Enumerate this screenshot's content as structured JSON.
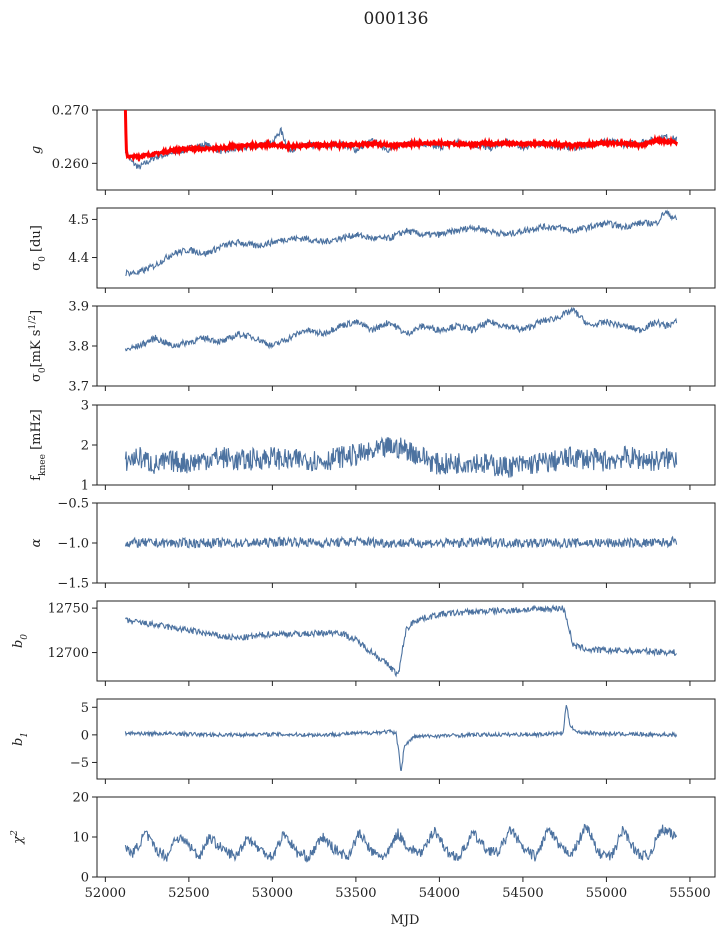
{
  "title": "000136",
  "chart_data": {
    "type": "line",
    "title": "000136",
    "xlabel": "MJD",
    "xlim": [
      51950,
      55650
    ],
    "xticks": [
      52000,
      52500,
      53000,
      53500,
      54000,
      54500,
      55000,
      55500
    ],
    "xtick_labels": [
      "52000",
      "52500",
      "53000",
      "53500",
      "54000",
      "54500",
      "55000",
      "55500"
    ],
    "series_color": "#4c72a0",
    "fit_color": "#ff0000",
    "grid": false,
    "panels": [
      {
        "name": "g",
        "ylabel": "g",
        "ylim": [
          0.255,
          0.27
        ],
        "yticks": [
          0.26,
          0.27
        ],
        "ytick_labels": [
          "0.260",
          "0.270"
        ],
        "x": [
          52120,
          52150,
          52200,
          52300,
          52400,
          52500,
          52600,
          52700,
          52800,
          52900,
          53000,
          53050,
          53100,
          53200,
          53300,
          53400,
          53500,
          53600,
          53700,
          53800,
          53900,
          54000,
          54100,
          54200,
          54300,
          54400,
          54500,
          54600,
          54700,
          54800,
          54900,
          55000,
          55100,
          55200,
          55300,
          55350,
          55420
        ],
        "y": [
          0.2625,
          0.2605,
          0.2592,
          0.2612,
          0.2618,
          0.2628,
          0.2635,
          0.2622,
          0.2628,
          0.2632,
          0.2638,
          0.2662,
          0.2625,
          0.2635,
          0.263,
          0.2638,
          0.2625,
          0.2642,
          0.2625,
          0.264,
          0.2635,
          0.263,
          0.264,
          0.2635,
          0.2628,
          0.264,
          0.263,
          0.2638,
          0.2632,
          0.2628,
          0.2635,
          0.2642,
          0.2635,
          0.264,
          0.2645,
          0.265,
          0.2645
        ],
        "fit": {
          "x": [
            52120,
            52125,
            52130,
            52150,
            52200,
            52300,
            52400,
            52500,
            52600,
            52700,
            52800,
            52900,
            53000,
            53100,
            53200,
            53300,
            53400,
            53500,
            53600,
            53700,
            53800,
            53900,
            54000,
            54100,
            54200,
            54300,
            54400,
            54500,
            54600,
            54700,
            54800,
            54900,
            55000,
            55100,
            55200,
            55300,
            55350,
            55420
          ],
          "y": [
            0.27,
            0.2625,
            0.2615,
            0.2612,
            0.2613,
            0.2618,
            0.2624,
            0.2628,
            0.2627,
            0.2629,
            0.2632,
            0.2634,
            0.2634,
            0.2632,
            0.2633,
            0.2635,
            0.2634,
            0.2635,
            0.2637,
            0.2634,
            0.2635,
            0.2638,
            0.2638,
            0.2636,
            0.2636,
            0.2637,
            0.2637,
            0.2636,
            0.2637,
            0.2636,
            0.2634,
            0.2636,
            0.2638,
            0.2638,
            0.2634,
            0.2643,
            0.2642,
            0.2639
          ]
        }
      },
      {
        "name": "sigma0-du",
        "ylabel": "σ0 [du]",
        "ylim": [
          4.32,
          4.53
        ],
        "yticks": [
          4.4,
          4.5
        ],
        "ytick_labels": [
          "4.4",
          "4.5"
        ],
        "x": [
          52120,
          52200,
          52300,
          52400,
          52500,
          52600,
          52700,
          52800,
          52900,
          53000,
          53100,
          53200,
          53300,
          53400,
          53500,
          53600,
          53700,
          53800,
          53900,
          54000,
          54100,
          54200,
          54300,
          54400,
          54500,
          54600,
          54700,
          54800,
          54900,
          55000,
          55100,
          55200,
          55300,
          55350,
          55420
        ],
        "y": [
          4.36,
          4.36,
          4.38,
          4.41,
          4.42,
          4.41,
          4.43,
          4.44,
          4.43,
          4.44,
          4.45,
          4.45,
          4.44,
          4.45,
          4.46,
          4.45,
          4.45,
          4.47,
          4.46,
          4.46,
          4.47,
          4.48,
          4.47,
          4.46,
          4.47,
          4.48,
          4.48,
          4.47,
          4.48,
          4.49,
          4.48,
          4.49,
          4.49,
          4.52,
          4.5
        ]
      },
      {
        "name": "sigma0-mk",
        "ylabel": "σ0[mK s1/2]",
        "ylim": [
          3.7,
          3.9
        ],
        "yticks": [
          3.7,
          3.8,
          3.9
        ],
        "ytick_labels": [
          "3.7",
          "3.8",
          "3.9"
        ],
        "x": [
          52120,
          52200,
          52300,
          52400,
          52500,
          52600,
          52700,
          52800,
          52900,
          53000,
          53100,
          53200,
          53300,
          53400,
          53500,
          53600,
          53700,
          53800,
          53900,
          54000,
          54100,
          54200,
          54300,
          54400,
          54500,
          54600,
          54700,
          54800,
          54900,
          55000,
          55100,
          55200,
          55300,
          55350,
          55420
        ],
        "y": [
          3.79,
          3.8,
          3.82,
          3.8,
          3.81,
          3.82,
          3.81,
          3.83,
          3.82,
          3.8,
          3.82,
          3.84,
          3.83,
          3.85,
          3.86,
          3.84,
          3.86,
          3.83,
          3.85,
          3.84,
          3.85,
          3.84,
          3.86,
          3.85,
          3.84,
          3.86,
          3.87,
          3.89,
          3.85,
          3.86,
          3.85,
          3.84,
          3.86,
          3.85,
          3.86
        ]
      },
      {
        "name": "fknee",
        "ylabel": "fknee [mHz]",
        "ylim": [
          1,
          3
        ],
        "yticks": [
          1,
          2,
          3
        ],
        "ytick_labels": [
          "1",
          "2",
          "3"
        ],
        "x": [
          52120,
          52200,
          52300,
          52400,
          52500,
          52600,
          52700,
          52800,
          52900,
          53000,
          53100,
          53200,
          53300,
          53400,
          53500,
          53600,
          53700,
          53800,
          53900,
          54000,
          54100,
          54200,
          54300,
          54400,
          54500,
          54600,
          54700,
          54800,
          54900,
          55000,
          55100,
          55200,
          55300,
          55420
        ],
        "y": [
          1.6,
          1.7,
          1.5,
          1.6,
          1.55,
          1.65,
          1.7,
          1.6,
          1.65,
          1.7,
          1.6,
          1.65,
          1.6,
          1.7,
          1.75,
          1.8,
          1.95,
          1.9,
          1.7,
          1.5,
          1.55,
          1.6,
          1.5,
          1.45,
          1.5,
          1.55,
          1.6,
          1.7,
          1.65,
          1.6,
          1.7,
          1.65,
          1.6,
          1.7
        ],
        "noise": 0.28
      },
      {
        "name": "alpha",
        "ylabel": "α",
        "ylim": [
          -1.5,
          -0.5
        ],
        "yticks": [
          -1.5,
          -1.0,
          -0.5
        ],
        "ytick_labels": [
          "−1.5",
          "−1.0",
          "−0.5"
        ],
        "x": [
          52120,
          52300,
          52500,
          52700,
          52900,
          53100,
          53300,
          53500,
          53700,
          53900,
          54100,
          54300,
          54500,
          54700,
          54900,
          55100,
          55300,
          55420
        ],
        "y": [
          -1.0,
          -1.0,
          -1.0,
          -1.0,
          -1.0,
          -0.98,
          -1.0,
          -0.98,
          -1.0,
          -1.0,
          -1.0,
          -0.99,
          -1.0,
          -1.0,
          -1.0,
          -1.0,
          -1.0,
          -0.98
        ],
        "noise": 0.06
      },
      {
        "name": "b0",
        "ylabel": "b0",
        "ylim": [
          12668,
          12758
        ],
        "yticks": [
          12700,
          12750
        ],
        "ytick_labels": [
          "12700",
          "12750"
        ],
        "x": [
          52120,
          52300,
          52500,
          52700,
          52800,
          53000,
          53200,
          53400,
          53500,
          53600,
          53700,
          53750,
          53760,
          53780,
          53800,
          53850,
          54000,
          54200,
          54500,
          54740,
          54760,
          54800,
          54900,
          55100,
          55300,
          55420
        ],
        "y": [
          12736,
          12731,
          12725,
          12718,
          12716,
          12721,
          12721,
          12723,
          12714,
          12700,
          12685,
          12675,
          12680,
          12705,
          12725,
          12736,
          12743,
          12746,
          12748,
          12750,
          12740,
          12708,
          12703,
          12702,
          12701,
          12700
        ]
      },
      {
        "name": "b1",
        "ylabel": "b1",
        "ylim": [
          -8,
          6.5
        ],
        "yticks": [
          -5,
          0,
          5
        ],
        "ytick_labels": [
          "−5",
          "0",
          "5"
        ],
        "x": [
          52120,
          52400,
          52700,
          53000,
          53300,
          53600,
          53700,
          53740,
          53760,
          53770,
          53790,
          53850,
          54200,
          54600,
          54740,
          54760,
          54780,
          54820,
          55000,
          55200,
          55420
        ],
        "y": [
          0.3,
          0.2,
          0.0,
          0.1,
          0.0,
          0.4,
          0.6,
          0.2,
          -3.5,
          -7.0,
          -2.0,
          -0.3,
          0.0,
          0.1,
          0.3,
          5.5,
          2.0,
          0.5,
          0.2,
          0.1,
          0.0
        ],
        "noise": 0.35
      },
      {
        "name": "chi2",
        "ylabel": "χ2",
        "xlabel": "MJD",
        "ylim": [
          0,
          20
        ],
        "yticks": [
          0,
          10,
          20
        ],
        "ytick_labels": [
          "0",
          "10",
          "20"
        ],
        "x": [
          52120,
          52170,
          52240,
          52300,
          52370,
          52420,
          52480,
          52560,
          52620,
          52700,
          52780,
          52850,
          52920,
          53000,
          53070,
          53150,
          53220,
          53300,
          53370,
          53450,
          53520,
          53600,
          53680,
          53750,
          53820,
          53900,
          53970,
          54050,
          54120,
          54200,
          54280,
          54350,
          54430,
          54500,
          54580,
          54650,
          54730,
          54800,
          54880,
          54950,
          55030,
          55100,
          55180,
          55250,
          55330,
          55420
        ],
        "y": [
          7,
          6,
          11,
          7,
          5,
          10,
          9,
          5,
          10,
          7,
          5,
          10,
          7,
          5,
          11,
          6,
          5,
          10,
          7,
          5,
          11,
          6,
          5,
          11,
          7,
          6,
          12,
          6,
          5,
          11,
          7,
          6,
          12,
          7,
          5,
          12,
          7,
          6,
          13,
          6,
          5,
          12,
          6,
          5,
          12,
          10
        ],
        "noise": 1.3
      }
    ]
  }
}
